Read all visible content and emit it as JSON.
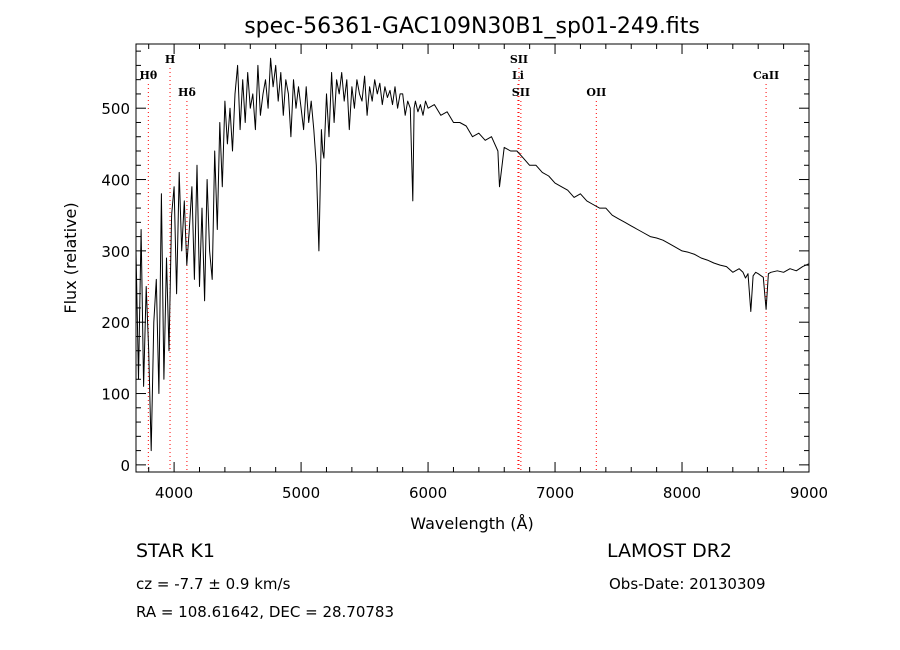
{
  "chart_data": {
    "type": "line",
    "title": "spec-56361-GAC109N30B1_sp01-249.fits",
    "xlabel": "Wavelength (Å)",
    "ylabel": "Flux (relative)",
    "xlim": [
      3700,
      9000
    ],
    "ylim": [
      -10,
      590
    ],
    "xticks": [
      {
        "value": 4000,
        "label": "4000"
      },
      {
        "value": 5000,
        "label": "5000"
      },
      {
        "value": 6000,
        "label": "6000"
      },
      {
        "value": 7000,
        "label": "7000"
      },
      {
        "value": 8000,
        "label": "8000"
      },
      {
        "value": 9000,
        "label": "9000"
      }
    ],
    "yticks": [
      {
        "value": 0,
        "label": "0"
      },
      {
        "value": 100,
        "label": "100"
      },
      {
        "value": 200,
        "label": "200"
      },
      {
        "value": 300,
        "label": "300"
      },
      {
        "value": 400,
        "label": "400"
      },
      {
        "value": 500,
        "label": "500"
      }
    ],
    "line_color": "#000000",
    "marker_color": "#ff0000",
    "grid": false,
    "spectral_lines": [
      {
        "label": "Hθ",
        "wavelength": 3797,
        "row": 3
      },
      {
        "label": "H",
        "wavelength": 3968,
        "row": 1
      },
      {
        "label": "Hδ",
        "wavelength": 4101,
        "row": 4
      },
      {
        "label": "SII",
        "wavelength": 6716,
        "row": 1
      },
      {
        "label": "Li",
        "wavelength": 6708,
        "row": 3
      },
      {
        "label": "SII",
        "wavelength": 6731,
        "row": 4
      },
      {
        "label": "OII",
        "wavelength": 7325,
        "row": 4
      },
      {
        "label": "CaII",
        "wavelength": 8662,
        "row": 3
      }
    ],
    "series": [
      {
        "x": [
          3700,
          3720,
          3740,
          3760,
          3780,
          3800,
          3820,
          3840,
          3860,
          3880,
          3900,
          3920,
          3940,
          3960,
          3980,
          4000,
          4020,
          4040,
          4060,
          4080,
          4100,
          4120,
          4140,
          4160,
          4180,
          4200,
          4220,
          4240,
          4260,
          4280,
          4300,
          4320,
          4340,
          4360,
          4380,
          4400,
          4420,
          4440,
          4460,
          4480,
          4500,
          4520,
          4540,
          4560,
          4580,
          4600,
          4620,
          4640,
          4660,
          4680,
          4700,
          4720,
          4740,
          4760,
          4780,
          4800,
          4820,
          4840,
          4860,
          4880,
          4900,
          4920,
          4940,
          4960,
          4980,
          5000,
          5020,
          5040,
          5060,
          5080,
          5100,
          5120,
          5140,
          5160,
          5170,
          5180,
          5200,
          5220,
          5240,
          5260,
          5280,
          5300,
          5320,
          5340,
          5360,
          5380,
          5400,
          5420,
          5440,
          5460,
          5480,
          5500,
          5520,
          5540,
          5560,
          5580,
          5600,
          5620,
          5640,
          5660,
          5680,
          5700,
          5720,
          5740,
          5760,
          5780,
          5800,
          5820,
          5840,
          5860,
          5880,
          5890,
          5900,
          5920,
          5940,
          5960,
          5980,
          6000,
          6050,
          6100,
          6150,
          6200,
          6250,
          6300,
          6350,
          6400,
          6450,
          6500,
          6550,
          6563,
          6600,
          6650,
          6700,
          6750,
          6800,
          6850,
          6900,
          6950,
          7000,
          7050,
          7100,
          7150,
          7200,
          7250,
          7300,
          7350,
          7400,
          7450,
          7500,
          7550,
          7600,
          7650,
          7700,
          7750,
          7800,
          7850,
          7900,
          7950,
          8000,
          8050,
          8100,
          8150,
          8200,
          8250,
          8300,
          8350,
          8400,
          8450,
          8480,
          8500,
          8520,
          8542,
          8560,
          8580,
          8600,
          8640,
          8662,
          8680,
          8700,
          8750,
          8800,
          8850,
          8900,
          8950,
          9000
        ],
        "y": [
          300,
          120,
          330,
          110,
          250,
          160,
          20,
          200,
          260,
          100,
          380,
          120,
          290,
          160,
          350,
          390,
          240,
          410,
          300,
          370,
          280,
          330,
          390,
          260,
          420,
          250,
          360,
          230,
          400,
          300,
          260,
          440,
          330,
          480,
          390,
          510,
          450,
          500,
          440,
          520,
          560,
          470,
          540,
          480,
          550,
          500,
          520,
          470,
          560,
          490,
          520,
          540,
          500,
          570,
          530,
          560,
          510,
          550,
          490,
          540,
          520,
          460,
          540,
          500,
          530,
          500,
          470,
          530,
          480,
          510,
          470,
          420,
          300,
          470,
          440,
          430,
          520,
          460,
          550,
          480,
          540,
          520,
          550,
          510,
          540,
          470,
          530,
          500,
          540,
          520,
          510,
          545,
          490,
          530,
          510,
          540,
          520,
          535,
          505,
          530,
          515,
          525,
          505,
          530,
          500,
          520,
          520,
          490,
          510,
          500,
          370,
          500,
          510,
          495,
          505,
          490,
          510,
          500,
          505,
          490,
          495,
          480,
          480,
          475,
          460,
          465,
          455,
          460,
          440,
          390,
          445,
          440,
          440,
          430,
          420,
          420,
          410,
          405,
          395,
          390,
          385,
          375,
          380,
          370,
          365,
          360,
          360,
          350,
          345,
          340,
          335,
          330,
          325,
          320,
          318,
          315,
          310,
          305,
          300,
          298,
          295,
          290,
          287,
          283,
          280,
          278,
          270,
          275,
          270,
          262,
          268,
          215,
          265,
          270,
          268,
          263,
          218,
          268,
          270,
          272,
          270,
          275,
          272,
          278,
          282
        ]
      }
    ]
  },
  "info": {
    "object": "STAR    K1",
    "survey": "LAMOST DR2",
    "cz": "cz = -7.7 ± 0.9 km/s",
    "obs_date": "Obs-Date: 20130309",
    "radec": "RA = 108.61642, DEC =  28.70783"
  }
}
